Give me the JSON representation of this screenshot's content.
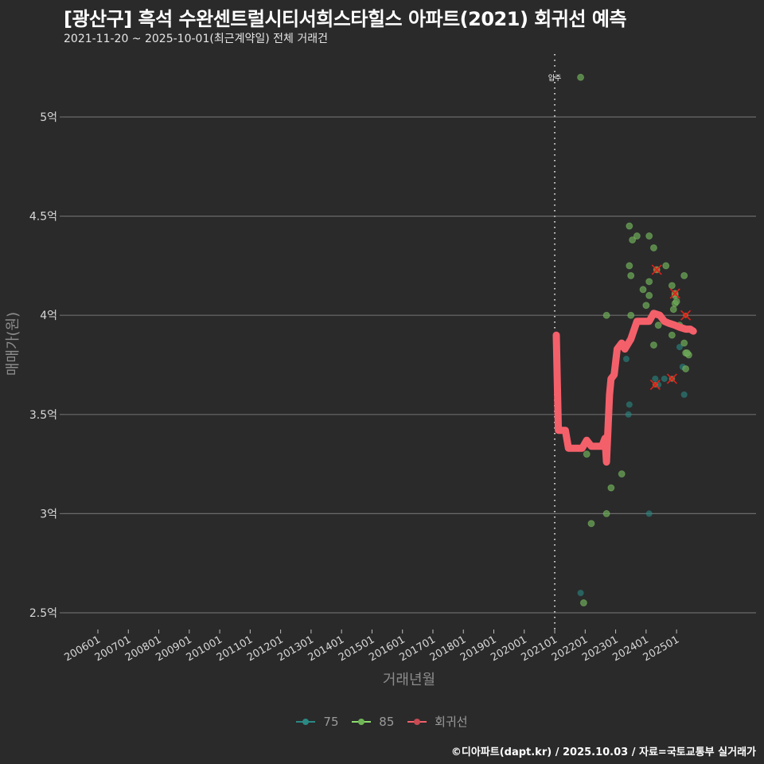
{
  "header": {
    "title": "[광산구] 흑석 수완센트럴시티서희스타힐스 아파트(2021) 회귀선 예측",
    "subtitle": "2021-11-20 ~ 2025-10-01(최근계약일) 전체 거래건"
  },
  "footer": {
    "credit": "©디아파트(dapt.kr) / 2025.10.03 / 자료=국토교통부 실거래가"
  },
  "colors": {
    "background": "#2a2a2b",
    "grid": "#6a6a6a",
    "series_75": "#2a8a84",
    "series_85": "#8fdc6e",
    "regression": "#f4606a",
    "highlight_x": "#e0201c",
    "vline": "#cfcfcf"
  },
  "chart_data": {
    "type": "scatter",
    "title": "[광산구] 흑석 수완센트럴시티서희스타힐스 아파트(2021) 회귀선 예측",
    "subtitle": "2021-11-20 ~ 2025-10-01(최근계약일) 전체 거래건",
    "xlabel": "거래년월",
    "ylabel": "매매가(원)",
    "x_ticks": [
      "200601",
      "200701",
      "200801",
      "200901",
      "201001",
      "201101",
      "201201",
      "201301",
      "201401",
      "201501",
      "201601",
      "201701",
      "201801",
      "201901",
      "202001",
      "202101",
      "202201",
      "202301",
      "202401",
      "202501"
    ],
    "y_ticks": [
      {
        "value": 2.5,
        "label": "2.5억"
      },
      {
        "value": 3.0,
        "label": "3억"
      },
      {
        "value": 3.5,
        "label": "3.5억"
      },
      {
        "value": 4.0,
        "label": "4억"
      },
      {
        "value": 4.5,
        "label": "4.5억"
      },
      {
        "value": 5.0,
        "label": "5억"
      }
    ],
    "ylim": [
      2.45,
      5.4
    ],
    "xlim": [
      2005.35,
      2027.2
    ],
    "grid": true,
    "legend_position": "bottom",
    "legend": [
      "75",
      "85",
      "회귀선"
    ],
    "annotation": {
      "label": "입주",
      "x": 2021.0
    },
    "series": [
      {
        "name": "75",
        "type": "scatter",
        "points": [
          [
            2021.85,
            2.6
          ],
          [
            2023.45,
            3.55
          ],
          [
            2023.42,
            3.5
          ],
          [
            2023.35,
            3.78
          ],
          [
            2024.1,
            3.0
          ],
          [
            2024.3,
            3.68
          ],
          [
            2024.6,
            3.68
          ],
          [
            2024.4,
            3.65
          ],
          [
            2025.1,
            3.84
          ],
          [
            2025.2,
            3.74
          ],
          [
            2025.25,
            3.6
          ],
          [
            2024.85,
            3.68
          ]
        ]
      },
      {
        "name": "85",
        "type": "scatter",
        "points": [
          [
            2021.85,
            5.2
          ],
          [
            2021.95,
            2.55
          ],
          [
            2022.2,
            2.95
          ],
          [
            2022.05,
            3.3
          ],
          [
            2022.7,
            3.0
          ],
          [
            2022.85,
            3.13
          ],
          [
            2023.2,
            3.2
          ],
          [
            2023.45,
            4.45
          ],
          [
            2023.55,
            4.38
          ],
          [
            2023.7,
            4.4
          ],
          [
            2023.5,
            4.2
          ],
          [
            2023.45,
            4.25
          ],
          [
            2024.1,
            4.4
          ],
          [
            2024.25,
            4.34
          ],
          [
            2024.35,
            4.23
          ],
          [
            2024.65,
            4.25
          ],
          [
            2023.9,
            4.13
          ],
          [
            2024.1,
            4.17
          ],
          [
            2024.0,
            4.05
          ],
          [
            2024.1,
            4.1
          ],
          [
            2023.5,
            4.0
          ],
          [
            2022.7,
            4.0
          ],
          [
            2024.85,
            4.15
          ],
          [
            2024.95,
            4.1
          ],
          [
            2024.95,
            4.06
          ],
          [
            2025.0,
            4.07
          ],
          [
            2024.9,
            4.03
          ],
          [
            2025.25,
            4.2
          ],
          [
            2024.25,
            3.85
          ],
          [
            2024.4,
            3.95
          ],
          [
            2024.85,
            3.9
          ],
          [
            2025.1,
            3.95
          ],
          [
            2025.25,
            3.86
          ],
          [
            2025.3,
            3.81
          ],
          [
            2025.4,
            3.8
          ],
          [
            2025.35,
            3.81
          ],
          [
            2025.3,
            3.73
          ],
          [
            2024.95,
            4.11
          ]
        ]
      },
      {
        "name": "회귀선",
        "type": "line",
        "points": [
          [
            2021.05,
            3.9
          ],
          [
            2021.12,
            3.42
          ],
          [
            2021.35,
            3.42
          ],
          [
            2021.45,
            3.33
          ],
          [
            2021.9,
            3.33
          ],
          [
            2022.05,
            3.37
          ],
          [
            2022.2,
            3.34
          ],
          [
            2022.55,
            3.34
          ],
          [
            2022.65,
            3.38
          ],
          [
            2022.7,
            3.26
          ],
          [
            2022.8,
            3.6
          ],
          [
            2022.85,
            3.68
          ],
          [
            2022.95,
            3.7
          ],
          [
            2023.05,
            3.83
          ],
          [
            2023.2,
            3.86
          ],
          [
            2023.3,
            3.83
          ],
          [
            2023.5,
            3.88
          ],
          [
            2023.7,
            3.97
          ],
          [
            2023.85,
            3.97
          ],
          [
            2024.1,
            3.97
          ],
          [
            2024.25,
            4.01
          ],
          [
            2024.45,
            4.0
          ],
          [
            2024.6,
            3.97
          ],
          [
            2024.75,
            3.96
          ],
          [
            2024.95,
            3.95
          ],
          [
            2025.1,
            3.94
          ],
          [
            2025.3,
            3.93
          ],
          [
            2025.45,
            3.93
          ],
          [
            2025.55,
            3.92
          ]
        ]
      }
    ],
    "highlighted_points": [
      [
        2024.35,
        4.23
      ],
      [
        2024.95,
        4.11
      ],
      [
        2025.3,
        4.0
      ],
      [
        2024.3,
        3.65
      ],
      [
        2024.85,
        3.68
      ]
    ]
  }
}
